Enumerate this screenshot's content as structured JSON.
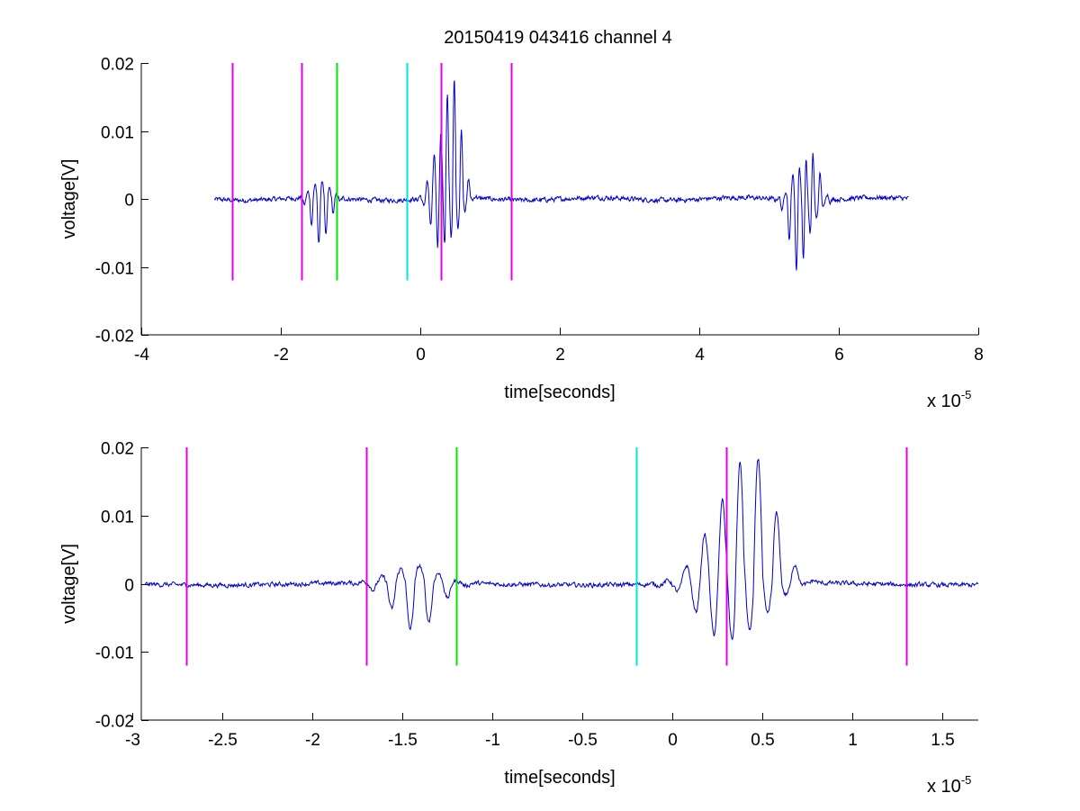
{
  "title": "20150419 043416 channel 4",
  "colors": {
    "magenta": "#e600e6",
    "green": "#00e600",
    "cyan": "#00e6e6",
    "trace": "#0000c8"
  },
  "chart_data": [
    {
      "type": "line",
      "xlabel": "time[seconds]",
      "ylabel": "voltage[V]",
      "x_multiplier": "x 10",
      "x_exponent": "-5",
      "xlim": [
        -4,
        8
      ],
      "ylim": [
        -0.02,
        0.02
      ],
      "xticks": [
        -4,
        -2,
        0,
        2,
        4,
        6,
        8
      ],
      "xtick_labels": [
        "-4",
        "-2",
        "0",
        "2",
        "4",
        "6",
        "8"
      ],
      "yticks": [
        0.02,
        0.01,
        0,
        -0.01,
        -0.02
      ],
      "ytick_labels": [
        "0.02",
        "0.01",
        "0",
        "-0.01",
        "-0.02"
      ],
      "markers": [
        {
          "x": -2.7,
          "y0": -0.012,
          "y1": 0.02,
          "color": "magenta"
        },
        {
          "x": -1.7,
          "y0": -0.012,
          "y1": 0.02,
          "color": "magenta"
        },
        {
          "x": -1.2,
          "y0": -0.012,
          "y1": 0.02,
          "color": "green"
        },
        {
          "x": -0.2,
          "y0": -0.012,
          "y1": 0.02,
          "color": "cyan"
        },
        {
          "x": 0.3,
          "y0": -0.012,
          "y1": 0.02,
          "color": "magenta"
        },
        {
          "x": 1.3,
          "y0": -0.012,
          "y1": 0.02,
          "color": "magenta"
        }
      ],
      "series": [
        {
          "x_range": [
            -2.95,
            7.0
          ],
          "noise_amplitude": 0.0006,
          "bursts": [
            {
              "x": -1.43,
              "peak_neg": -0.007,
              "peak_pos": 0.0025
            },
            {
              "x": 0.28,
              "peak_neg": -0.0075,
              "peak_pos": 0.008
            },
            {
              "x": 0.46,
              "peak_neg": -0.0055,
              "peak_pos": 0.018
            },
            {
              "x": 5.42,
              "peak_neg": -0.0108,
              "peak_pos": 0.0045
            },
            {
              "x": 5.6,
              "peak_neg": -0.0035,
              "peak_pos": 0.007
            }
          ]
        }
      ]
    },
    {
      "type": "line",
      "xlabel": "time[seconds]",
      "ylabel": "voltage[V]",
      "x_multiplier": "x 10",
      "x_exponent": "-5",
      "xlim": [
        -2.95,
        1.7
      ],
      "ylim": [
        -0.02,
        0.02
      ],
      "xticks": [
        -3,
        -2.5,
        -2,
        -1.5,
        -1,
        -0.5,
        0,
        0.5,
        1,
        1.5
      ],
      "xtick_labels": [
        "-3",
        "-2.5",
        "-2",
        "-1.5",
        "-1",
        "-0.5",
        "0",
        "0.5",
        "1",
        "1.5"
      ],
      "yticks": [
        0.02,
        0.01,
        0,
        -0.01,
        -0.02
      ],
      "ytick_labels": [
        "0.02",
        "0.01",
        "0",
        "-0.01",
        "-0.02"
      ],
      "markers": [
        {
          "x": -2.7,
          "y0": -0.012,
          "y1": 0.02,
          "color": "magenta"
        },
        {
          "x": -1.7,
          "y0": -0.012,
          "y1": 0.02,
          "color": "magenta"
        },
        {
          "x": -1.2,
          "y0": -0.012,
          "y1": 0.02,
          "color": "green"
        },
        {
          "x": -0.2,
          "y0": -0.012,
          "y1": 0.02,
          "color": "cyan"
        },
        {
          "x": 0.3,
          "y0": -0.012,
          "y1": 0.02,
          "color": "magenta"
        },
        {
          "x": 1.3,
          "y0": -0.012,
          "y1": 0.02,
          "color": "magenta"
        }
      ],
      "series": [
        {
          "x_range": [
            -2.93,
            1.7
          ],
          "noise_amplitude": 0.0006,
          "bursts": [
            {
              "x": -1.43,
              "peak_neg": -0.007,
              "peak_pos": 0.0025
            },
            {
              "x": 0.26,
              "peak_neg": -0.0075,
              "peak_pos": 0.008
            },
            {
              "x": 0.45,
              "peak_neg": -0.0055,
              "peak_pos": 0.018
            }
          ]
        }
      ]
    }
  ]
}
